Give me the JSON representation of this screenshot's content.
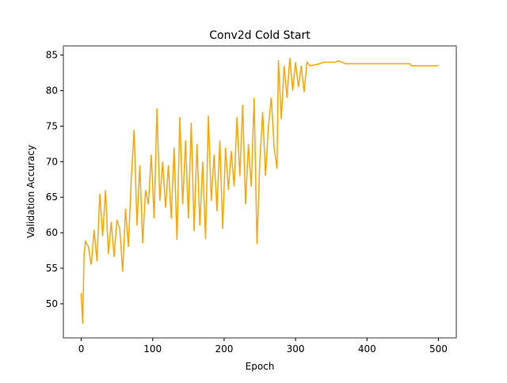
{
  "chart_data": {
    "type": "line",
    "title": "Conv2d Cold Start",
    "x_label": "Epoch",
    "y_label": "Validation Accuracy",
    "x": [
      0,
      2,
      4,
      6,
      10,
      14,
      18,
      22,
      26,
      30,
      34,
      38,
      42,
      46,
      50,
      54,
      58,
      62,
      66,
      70,
      74,
      78,
      82,
      86,
      90,
      94,
      98,
      102,
      106,
      110,
      114,
      118,
      122,
      126,
      130,
      134,
      138,
      142,
      146,
      150,
      154,
      158,
      162,
      166,
      170,
      174,
      178,
      182,
      186,
      190,
      194,
      198,
      202,
      206,
      210,
      214,
      218,
      222,
      226,
      230,
      234,
      238,
      242,
      246,
      250,
      254,
      258,
      262,
      266,
      270,
      274,
      276,
      280,
      284,
      288,
      292,
      296,
      300,
      304,
      308,
      312,
      316,
      320,
      330,
      340,
      355,
      360,
      365,
      370,
      460,
      462,
      500
    ],
    "series": [
      {
        "name": "Validation Accuracy",
        "color": "#ffa500",
        "values": [
          51.5,
          47.2,
          57,
          58.8,
          58,
          55.5,
          60.4,
          56,
          65.5,
          59.5,
          66,
          57,
          61.5,
          56.6,
          61.8,
          60.5,
          54.5,
          63.4,
          58,
          67.5,
          74.5,
          61,
          69.5,
          58.5,
          66,
          64,
          71,
          62,
          77.5,
          64.5,
          70,
          63.5,
          69.5,
          62,
          72,
          59,
          76.3,
          64,
          73,
          62,
          75.5,
          60.2,
          72.5,
          61,
          70,
          59.1,
          76.5,
          64.5,
          71,
          63,
          73,
          60.5,
          72,
          66,
          71.5,
          66.5,
          76.3,
          68,
          78,
          64,
          72.5,
          66.5,
          79,
          58.4,
          70,
          77,
          68,
          75,
          79,
          72,
          69,
          84.3,
          76,
          83.5,
          79,
          84.6,
          80,
          84,
          80.5,
          83.5,
          79.8,
          84,
          83.5,
          83.7,
          84,
          84,
          84.2,
          84,
          83.8,
          83.8,
          83.5,
          83.5
        ]
      }
    ],
    "xlim": [
      -25,
      525
    ],
    "ylim": [
      45.2,
      86.3
    ],
    "xticks": [
      0,
      100,
      200,
      300,
      400,
      500
    ],
    "yticks": [
      50,
      55,
      60,
      65,
      70,
      75,
      80,
      85
    ]
  }
}
